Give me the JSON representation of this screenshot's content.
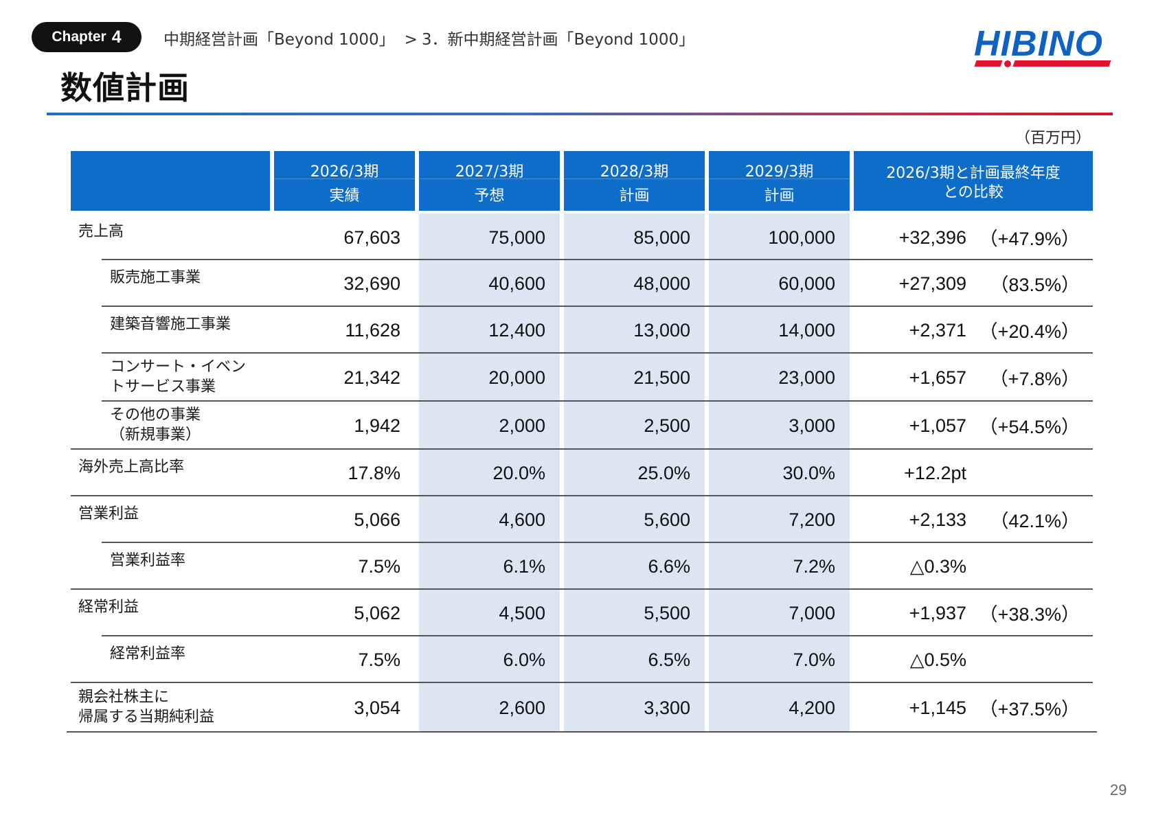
{
  "header": {
    "chapter_label": "Chapter",
    "chapter_number": "4",
    "breadcrumb_part1": "中期経営計画「Beyond 1000」",
    "breadcrumb_sep": ">",
    "breadcrumb_part2": "3．新中期経営計画「Beyond 1000」",
    "logo_text": "HIBINO",
    "page_title": "数値計画"
  },
  "colors": {
    "header_blue": "#0d6dc8",
    "shade": "#dce6f2",
    "accent_red": "#e0142b"
  },
  "table": {
    "unit": "（百万円）",
    "columns": [
      {
        "line1": "2026/3期",
        "line2": "実績"
      },
      {
        "line1": "2027/3期",
        "line2": "予想"
      },
      {
        "line1": "2028/3期",
        "line2": "計画"
      },
      {
        "line1": "2029/3期",
        "line2": "計画"
      },
      {
        "line1": "2026/3期と計画最終年度",
        "line2": "との比較"
      }
    ],
    "rows": [
      {
        "label1": "売上高",
        "label2": "",
        "values": [
          "67,603",
          "75,000",
          "85,000",
          "100,000"
        ],
        "diff": "+32,396",
        "pct": "（+47.9%）"
      },
      {
        "label1": "販売施工事業",
        "label2": "",
        "values": [
          "32,690",
          "40,600",
          "48,000",
          "60,000"
        ],
        "diff": "+27,309",
        "pct": "（83.5%）"
      },
      {
        "label1": "建築音響施工事業",
        "label2": "",
        "values": [
          "11,628",
          "12,400",
          "13,000",
          "14,000"
        ],
        "diff": "+2,371",
        "pct": "（+20.4%）"
      },
      {
        "label1": "コンサート・イベン",
        "label2": "トサービス事業",
        "values": [
          "21,342",
          "20,000",
          "21,500",
          "23,000"
        ],
        "diff": "+1,657",
        "pct": "（+7.8%）"
      },
      {
        "label1": "その他の事業",
        "label2": "（新規事業）",
        "values": [
          "1,942",
          "2,000",
          "2,500",
          "3,000"
        ],
        "diff": "+1,057",
        "pct": "（+54.5%）"
      },
      {
        "label1": "海外売上高比率",
        "label2": "",
        "values": [
          "17.8%",
          "20.0%",
          "25.0%",
          "30.0%"
        ],
        "diff": "+12.2pt",
        "pct": ""
      },
      {
        "label1": "営業利益",
        "label2": "",
        "values": [
          "5,066",
          "4,600",
          "5,600",
          "7,200"
        ],
        "diff": "+2,133",
        "pct": "（42.1%）"
      },
      {
        "label1": "営業利益率",
        "label2": "",
        "values": [
          "7.5%",
          "6.1%",
          "6.6%",
          "7.2%"
        ],
        "diff": "△0.3%",
        "pct": ""
      },
      {
        "label1": "経常利益",
        "label2": "",
        "values": [
          "5,062",
          "4,500",
          "5,500",
          "7,000"
        ],
        "diff": "+1,937",
        "pct": "（+38.3%）"
      },
      {
        "label1": "経常利益率",
        "label2": "",
        "values": [
          "7.5%",
          "6.0%",
          "6.5%",
          "7.0%"
        ],
        "diff": "△0.5%",
        "pct": ""
      },
      {
        "label1": "親会社株主に",
        "label2": "帰属する当期純利益",
        "values": [
          "3,054",
          "2,600",
          "3,300",
          "4,200"
        ],
        "diff": "+1,145",
        "pct": "（+37.5%）"
      }
    ]
  },
  "footer": {
    "page_number": "29"
  }
}
